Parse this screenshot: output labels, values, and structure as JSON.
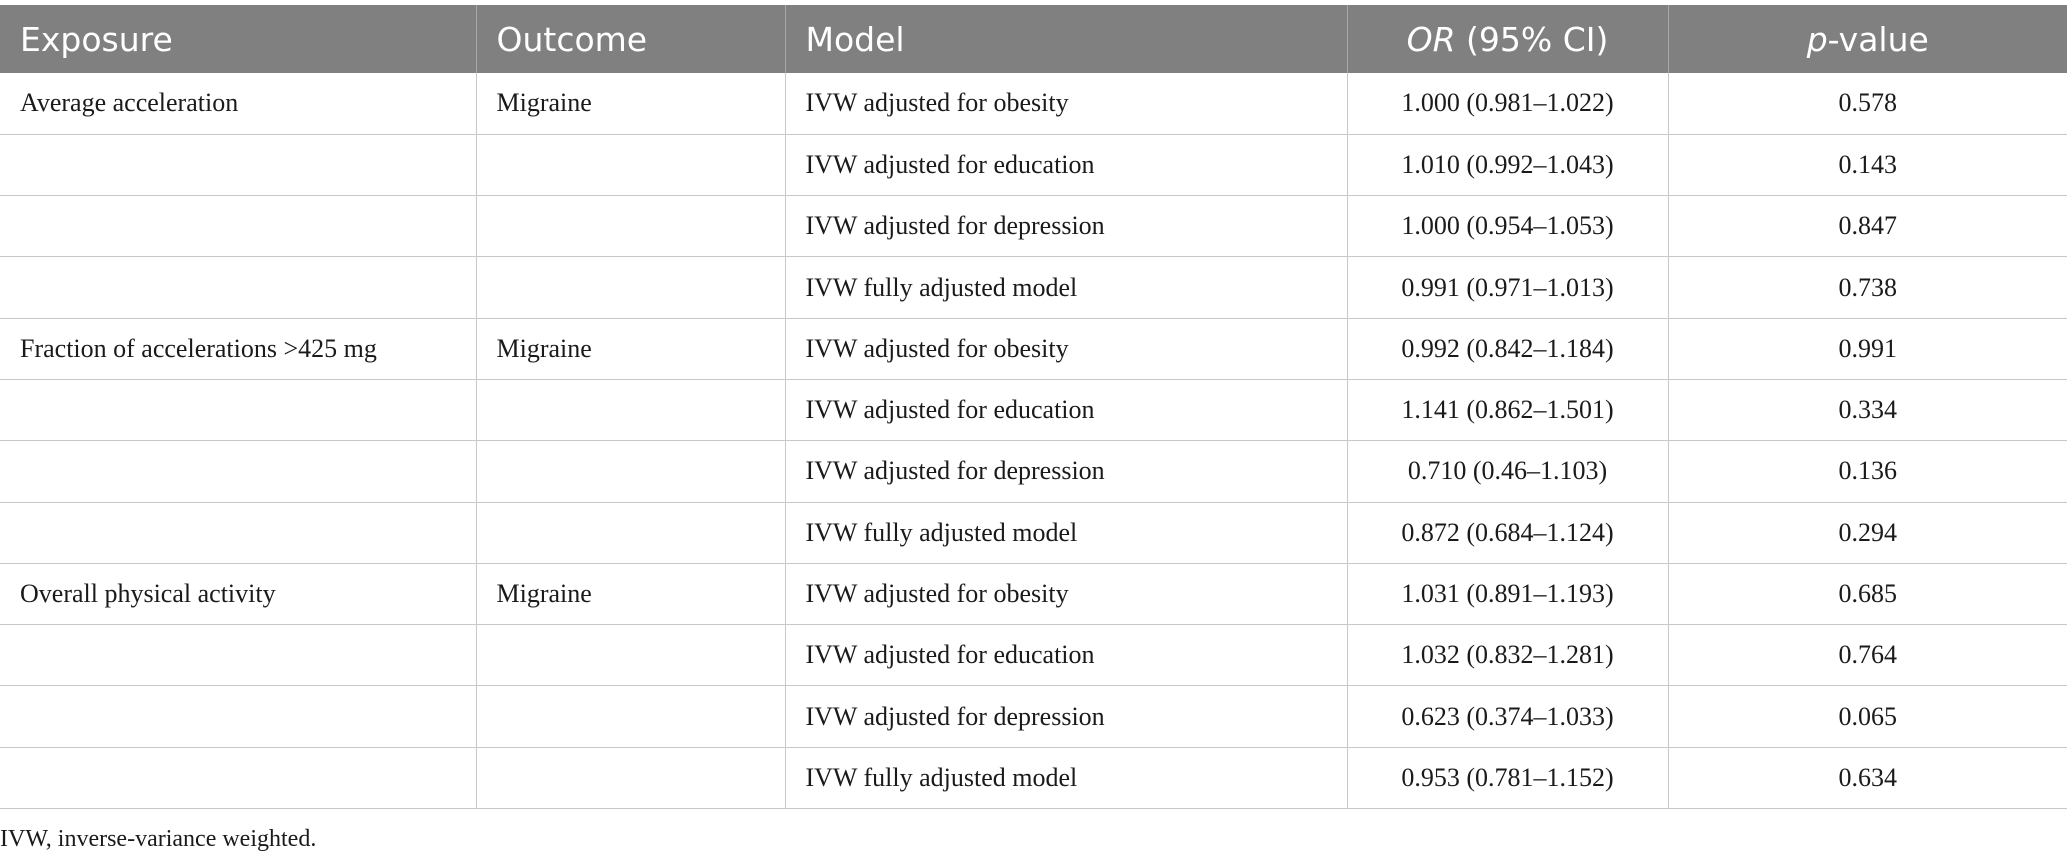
{
  "table": {
    "headers": {
      "exposure": "Exposure",
      "outcome": "Outcome",
      "model": "Model",
      "or_italic": "OR",
      "or_rest": " (95% CI)",
      "p_italic": "p",
      "p_rest": "-value"
    },
    "rows": [
      {
        "exposure": "Average acceleration",
        "outcome": "Migraine",
        "model": "IVW adjusted for obesity",
        "or": "1.000 (0.981–1.022)",
        "p": "0.578"
      },
      {
        "exposure": "",
        "outcome": "",
        "model": "IVW adjusted for education",
        "or": "1.010 (0.992–1.043)",
        "p": "0.143"
      },
      {
        "exposure": "",
        "outcome": "",
        "model": "IVW adjusted for depression",
        "or": "1.000 (0.954–1.053)",
        "p": "0.847"
      },
      {
        "exposure": "",
        "outcome": "",
        "model": "IVW fully adjusted model",
        "or": "0.991 (0.971–1.013)",
        "p": "0.738"
      },
      {
        "exposure": "Fraction of accelerations >425 mg",
        "outcome": "Migraine",
        "model": "IVW adjusted for obesity",
        "or": "0.992 (0.842–1.184)",
        "p": "0.991"
      },
      {
        "exposure": "",
        "outcome": "",
        "model": "IVW adjusted for education",
        "or": "1.141 (0.862–1.501)",
        "p": "0.334"
      },
      {
        "exposure": "",
        "outcome": "",
        "model": "IVW adjusted for depression",
        "or": "0.710 (0.46–1.103)",
        "p": "0.136"
      },
      {
        "exposure": "",
        "outcome": "",
        "model": "IVW fully adjusted model",
        "or": "0.872 (0.684–1.124)",
        "p": "0.294"
      },
      {
        "exposure": "Overall physical activity",
        "outcome": "Migraine",
        "model": "IVW adjusted for obesity",
        "or": "1.031 (0.891–1.193)",
        "p": "0.685"
      },
      {
        "exposure": "",
        "outcome": "",
        "model": "IVW adjusted for education",
        "or": "1.032 (0.832–1.281)",
        "p": "0.764"
      },
      {
        "exposure": "",
        "outcome": "",
        "model": "IVW adjusted for depression",
        "or": "0.623 (0.374–1.033)",
        "p": "0.065"
      },
      {
        "exposure": "",
        "outcome": "",
        "model": "IVW fully adjusted model",
        "or": "0.953 (0.781–1.152)",
        "p": "0.634"
      }
    ]
  },
  "footnote": "IVW, inverse-variance weighted.",
  "colors": {
    "header_bg": "#808080",
    "header_text": "#ffffff",
    "grid": "#c8c8c8"
  }
}
